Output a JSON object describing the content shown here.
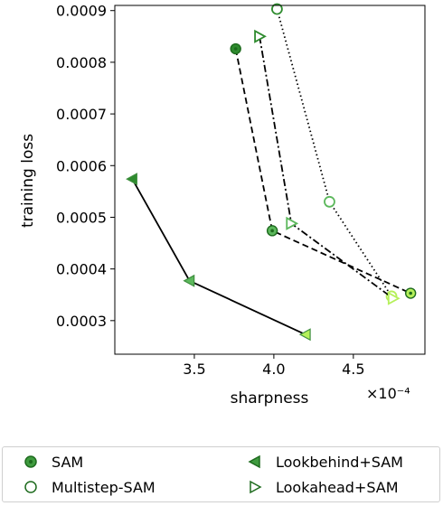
{
  "chart_data": {
    "type": "scatter",
    "xlabel": "sharpness",
    "ylabel": "training loss",
    "x_scale_label": "×10⁻⁴",
    "xlim": [
      3.0,
      4.95
    ],
    "ylim": [
      0.000235,
      0.00091
    ],
    "x_ticks": [
      3.5,
      4.0,
      4.5
    ],
    "x_tick_labels": [
      "3.5",
      "4.0",
      "4.5"
    ],
    "y_ticks": [
      0.0003,
      0.0004,
      0.0005,
      0.0006,
      0.0007,
      0.0008,
      0.0009
    ],
    "y_tick_labels": [
      "0.0003",
      "0.0004",
      "0.0005",
      "0.0006",
      "0.0007",
      "0.0008",
      "0.0009"
    ],
    "grid": false,
    "legend_position": "bottom",
    "series": [
      {
        "name": "SAM",
        "marker": "circle-dot",
        "linestyle": "dashed",
        "points": [
          {
            "x": 3.76,
            "y": 0.000826,
            "color": "#2e8b2e"
          },
          {
            "x": 3.99,
            "y": 0.000474,
            "color": "#5cb85c"
          },
          {
            "x": 4.86,
            "y": 0.000353,
            "color": "#b5f05a"
          }
        ]
      },
      {
        "name": "Multistep-SAM",
        "marker": "circle-open",
        "linestyle": "dotted",
        "points": [
          {
            "x": 4.02,
            "y": 0.000903,
            "color": "#2e8b2e"
          },
          {
            "x": 4.35,
            "y": 0.00053,
            "color": "#5cb85c"
          },
          {
            "x": 4.74,
            "y": 0.000347,
            "color": "#b5f05a"
          }
        ]
      },
      {
        "name": "Lookbehind+SAM",
        "marker": "triangle-left",
        "linestyle": "solid",
        "points": [
          {
            "x": 3.11,
            "y": 0.000574,
            "color": "#2e8b2e"
          },
          {
            "x": 3.47,
            "y": 0.000377,
            "color": "#5cb85c"
          },
          {
            "x": 4.2,
            "y": 0.000273,
            "color": "#b5f05a"
          }
        ]
      },
      {
        "name": "Lookahead+SAM",
        "marker": "triangle-right",
        "linestyle": "dashdot",
        "points": [
          {
            "x": 3.91,
            "y": 0.00085,
            "color": "#2e8b2e"
          },
          {
            "x": 4.11,
            "y": 0.000488,
            "color": "#5cb85c"
          },
          {
            "x": 4.75,
            "y": 0.000343,
            "color": "#b5f05a"
          }
        ]
      }
    ]
  }
}
